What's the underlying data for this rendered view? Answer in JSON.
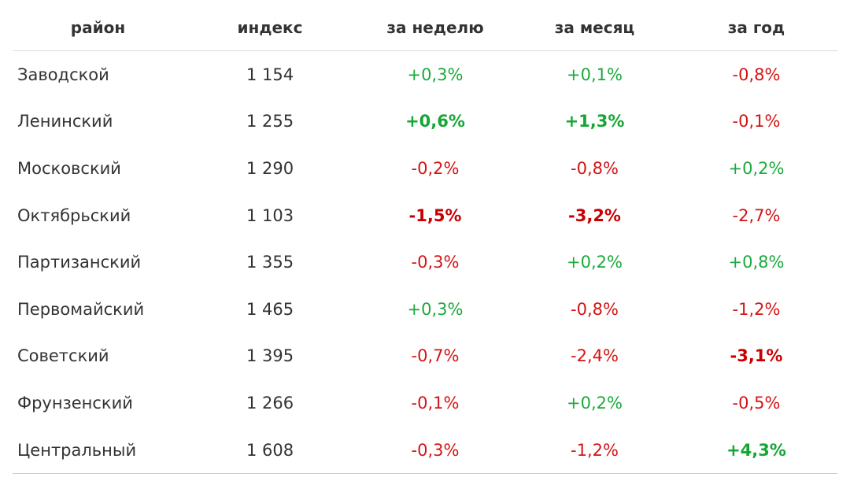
{
  "table": {
    "headers": [
      "район",
      "индекс",
      "за неделю",
      "за месяц",
      "за год"
    ],
    "rows": [
      {
        "district": "Заводской",
        "index": "1 154",
        "week": "+0,3%",
        "month": "+0,1%",
        "year": "-0,8%",
        "week_trend": "pos",
        "month_trend": "pos",
        "year_trend": "neg",
        "week_bold": false,
        "month_bold": false,
        "year_bold": false
      },
      {
        "district": "Ленинский",
        "index": "1 255",
        "week": "+0,6%",
        "month": "+1,3%",
        "year": "-0,1%",
        "week_trend": "pos",
        "month_trend": "pos",
        "year_trend": "neg",
        "week_bold": true,
        "month_bold": true,
        "year_bold": false
      },
      {
        "district": "Московский",
        "index": "1 290",
        "week": "-0,2%",
        "month": "-0,8%",
        "year": "+0,2%",
        "week_trend": "neg",
        "month_trend": "neg",
        "year_trend": "pos",
        "week_bold": false,
        "month_bold": false,
        "year_bold": false
      },
      {
        "district": "Октябрьский",
        "index": "1 103",
        "week": "-1,5%",
        "month": "-3,2%",
        "year": "-2,7%",
        "week_trend": "neg",
        "month_trend": "neg",
        "year_trend": "neg",
        "week_bold": true,
        "month_bold": true,
        "year_bold": false
      },
      {
        "district": "Партизанский",
        "index": "1 355",
        "week": "-0,3%",
        "month": "+0,2%",
        "year": "+0,8%",
        "week_trend": "neg",
        "month_trend": "pos",
        "year_trend": "pos",
        "week_bold": false,
        "month_bold": false,
        "year_bold": false
      },
      {
        "district": "Первомайский",
        "index": "1 465",
        "week": "+0,3%",
        "month": "-0,8%",
        "year": "-1,2%",
        "week_trend": "pos",
        "month_trend": "neg",
        "year_trend": "neg",
        "week_bold": false,
        "month_bold": false,
        "year_bold": false
      },
      {
        "district": "Советский",
        "index": "1 395",
        "week": "-0,7%",
        "month": "-2,4%",
        "year": "-3,1%",
        "week_trend": "neg",
        "month_trend": "neg",
        "year_trend": "neg",
        "week_bold": false,
        "month_bold": false,
        "year_bold": true
      },
      {
        "district": "Фрунзенский",
        "index": "1 266",
        "week": "-0,1%",
        "month": "+0,2%",
        "year": "-0,5%",
        "week_trend": "neg",
        "month_trend": "pos",
        "year_trend": "neg",
        "week_bold": false,
        "month_bold": false,
        "year_bold": false
      },
      {
        "district": "Центральный",
        "index": "1 608",
        "week": "-0,3%",
        "month": "-1,2%",
        "year": "+4,3%",
        "week_trend": "neg",
        "month_trend": "neg",
        "year_trend": "pos",
        "week_bold": false,
        "month_bold": false,
        "year_bold": true
      }
    ]
  },
  "colors": {
    "positive": "#1aaa3c",
    "negative": "#d41414",
    "text": "#333333"
  }
}
